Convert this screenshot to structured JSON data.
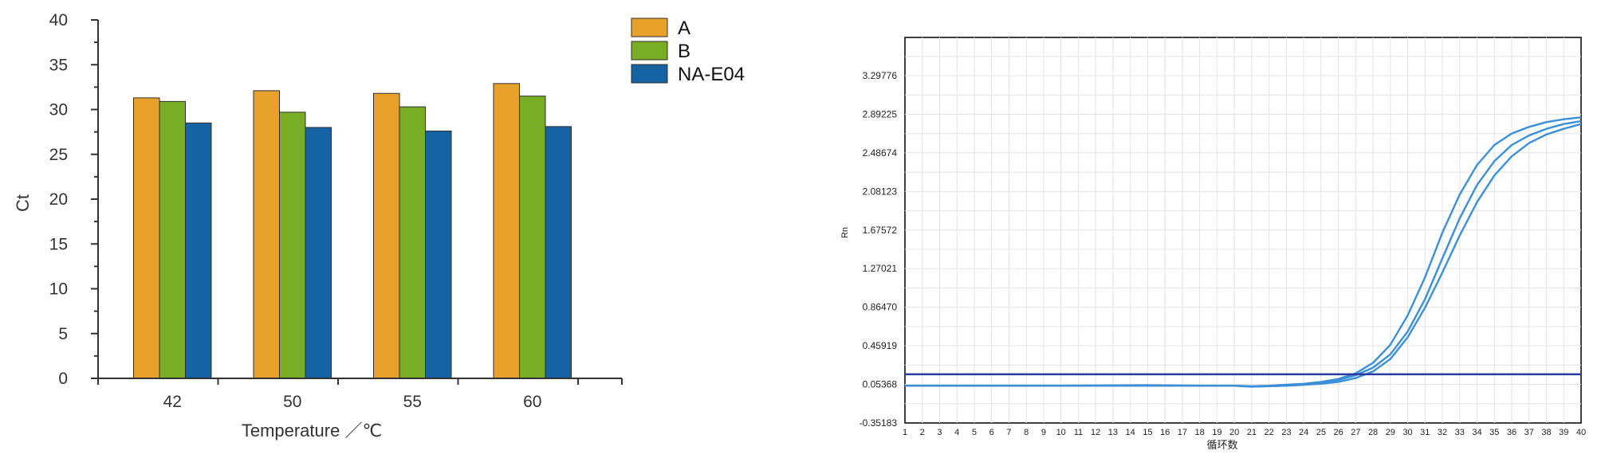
{
  "left_chart": {
    "ylabel": "Ct",
    "xlabel": "Temperature ／℃",
    "legend": [
      "A",
      "B",
      "NA-E04"
    ]
  },
  "right_chart": {
    "ylabel": "Rn",
    "xlabel": "循环数"
  },
  "chart_data": [
    {
      "type": "bar",
      "title": "",
      "xlabel": "Temperature ／℃",
      "ylabel": "Ct",
      "categories": [
        "42",
        "50",
        "55",
        "60"
      ],
      "series": [
        {
          "name": "A",
          "color": "#e8a22b",
          "values": [
            31.3,
            32.1,
            31.8,
            32.9
          ]
        },
        {
          "name": "B",
          "color": "#79ad26",
          "values": [
            30.9,
            29.7,
            30.3,
            31.5
          ]
        },
        {
          "name": "NA-E04",
          "color": "#1663a3",
          "values": [
            28.5,
            28.0,
            27.6,
            28.1
          ]
        }
      ],
      "ylim": [
        0,
        40
      ],
      "yticks": [
        0,
        5,
        10,
        15,
        20,
        25,
        30,
        35,
        40
      ],
      "grid": false,
      "legend_position": "top-right"
    },
    {
      "type": "line",
      "title": "",
      "xlabel": "循环数",
      "ylabel": "Rn",
      "xlim": [
        1,
        40
      ],
      "ylim": [
        -0.35183,
        3.7
      ],
      "xticks": [
        1,
        2,
        3,
        4,
        5,
        6,
        7,
        8,
        9,
        10,
        11,
        12,
        13,
        14,
        15,
        16,
        17,
        18,
        19,
        20,
        21,
        22,
        23,
        24,
        25,
        26,
        27,
        28,
        29,
        30,
        31,
        32,
        33,
        34,
        35,
        36,
        37,
        38,
        39,
        40
      ],
      "yticks": [
        "-0.35183",
        "0.05368",
        "0.45919",
        "0.86470",
        "1.27021",
        "1.67572",
        "2.08123",
        "2.48674",
        "2.89225",
        "3.29776"
      ],
      "grid": true,
      "threshold": {
        "value": 0.16,
        "color": "#2a3aa0"
      },
      "series": [
        {
          "color": "#3b8fd8",
          "x": [
            1,
            5,
            10,
            15,
            18,
            20,
            21,
            22,
            23,
            24,
            25,
            26,
            27,
            28,
            29,
            30,
            31,
            32,
            33,
            34,
            35,
            36,
            37,
            38,
            39,
            40
          ],
          "y": [
            0.04,
            0.04,
            0.04,
            0.04,
            0.04,
            0.04,
            0.035,
            0.04,
            0.05,
            0.06,
            0.08,
            0.11,
            0.17,
            0.28,
            0.47,
            0.78,
            1.18,
            1.65,
            2.05,
            2.36,
            2.57,
            2.69,
            2.76,
            2.81,
            2.84,
            2.86
          ]
        },
        {
          "color": "#3b8fd8",
          "x": [
            1,
            5,
            10,
            15,
            18,
            20,
            21,
            22,
            23,
            24,
            25,
            26,
            27,
            28,
            29,
            30,
            31,
            32,
            33,
            34,
            35,
            36,
            37,
            38,
            39,
            40
          ],
          "y": [
            0.04,
            0.04,
            0.04,
            0.045,
            0.04,
            0.04,
            0.03,
            0.035,
            0.04,
            0.05,
            0.07,
            0.1,
            0.15,
            0.23,
            0.37,
            0.61,
            0.95,
            1.38,
            1.8,
            2.15,
            2.4,
            2.57,
            2.67,
            2.74,
            2.79,
            2.82
          ]
        },
        {
          "color": "#3b8fd8",
          "x": [
            1,
            5,
            10,
            15,
            18,
            20,
            21,
            22,
            23,
            24,
            25,
            26,
            27,
            28,
            29,
            30,
            31,
            32,
            33,
            34,
            35,
            36,
            37,
            38,
            39,
            40
          ],
          "y": [
            0.04,
            0.04,
            0.04,
            0.04,
            0.04,
            0.04,
            0.03,
            0.035,
            0.04,
            0.05,
            0.06,
            0.08,
            0.12,
            0.19,
            0.32,
            0.55,
            0.86,
            1.23,
            1.62,
            1.97,
            2.25,
            2.45,
            2.59,
            2.68,
            2.74,
            2.79
          ]
        }
      ]
    }
  ]
}
